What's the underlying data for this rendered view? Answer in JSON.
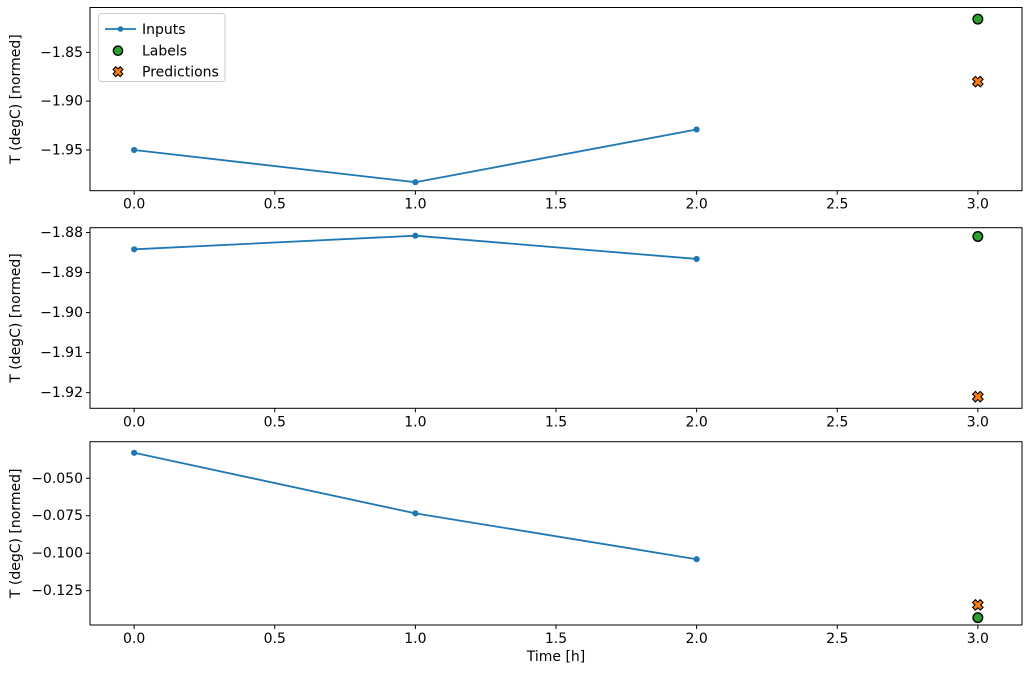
{
  "figure": {
    "background": "#ffffff",
    "xlabel": "Time [h]",
    "legend": {
      "position": "upper-left",
      "border_color": "#cccccc",
      "background": "#ffffff",
      "items": [
        {
          "label": "Inputs",
          "marker": "line-dot",
          "color": "#1f77b4",
          "edge": "#1f77b4"
        },
        {
          "label": "Labels",
          "marker": "circle",
          "color": "#2ca02c",
          "edge": "#000000"
        },
        {
          "label": "Predictions",
          "marker": "x",
          "color": "#ff7f0e",
          "edge": "#000000"
        }
      ]
    }
  },
  "chart_data": [
    {
      "type": "line",
      "title": "",
      "xlabel": "",
      "ylabel": "T (degC) [normed]",
      "grid": false,
      "xlim": [
        -0.157,
        3.157
      ],
      "ylim": [
        -1.9917,
        -1.8041
      ],
      "xticks": [
        0.0,
        0.5,
        1.0,
        1.5,
        2.0,
        2.5,
        3.0
      ],
      "xtick_labels": [
        "0.0",
        "0.5",
        "1.0",
        "1.5",
        "2.0",
        "2.5",
        "3.0"
      ],
      "yticks": [
        -1.85,
        -1.9,
        -1.95
      ],
      "ytick_labels": [
        "−1.85",
        "−1.90",
        "−1.95"
      ],
      "series": [
        {
          "name": "Inputs",
          "type": "line",
          "color": "#1f77b4",
          "x": [
            0,
            1,
            2
          ],
          "y": [
            -1.95,
            -1.983,
            -1.929
          ]
        },
        {
          "name": "Labels",
          "type": "scatter-circle",
          "color": "#2ca02c",
          "edge": "#000000",
          "x": [
            3
          ],
          "y": [
            -1.816
          ]
        },
        {
          "name": "Predictions",
          "type": "scatter-x",
          "color": "#ff7f0e",
          "edge": "#000000",
          "x": [
            3
          ],
          "y": [
            -1.88
          ]
        }
      ]
    },
    {
      "type": "line",
      "title": "",
      "xlabel": "",
      "ylabel": "T (degC) [normed]",
      "grid": false,
      "xlim": [
        -0.157,
        3.157
      ],
      "ylim": [
        -1.9239,
        -1.8788
      ],
      "xticks": [
        0.0,
        0.5,
        1.0,
        1.5,
        2.0,
        2.5,
        3.0
      ],
      "xtick_labels": [
        "0.0",
        "0.5",
        "1.0",
        "1.5",
        "2.0",
        "2.5",
        "3.0"
      ],
      "yticks": [
        -1.88,
        -1.89,
        -1.9,
        -1.91,
        -1.92
      ],
      "ytick_labels": [
        "−1.88",
        "−1.89",
        "−1.90",
        "−1.91",
        "−1.92"
      ],
      "series": [
        {
          "name": "Inputs",
          "type": "line",
          "color": "#1f77b4",
          "x": [
            0,
            1,
            2
          ],
          "y": [
            -1.8842,
            -1.8808,
            -1.8866
          ]
        },
        {
          "name": "Labels",
          "type": "scatter-circle",
          "color": "#2ca02c",
          "edge": "#000000",
          "x": [
            3
          ],
          "y": [
            -1.881
          ]
        },
        {
          "name": "Predictions",
          "type": "scatter-x",
          "color": "#ff7f0e",
          "edge": "#000000",
          "x": [
            3
          ],
          "y": [
            -1.921
          ]
        }
      ]
    },
    {
      "type": "line",
      "title": "",
      "xlabel": "Time [h]",
      "ylabel": "T (degC) [normed]",
      "grid": false,
      "xlim": [
        -0.157,
        3.157
      ],
      "ylim": [
        -0.1479,
        -0.0256
      ],
      "xticks": [
        0.0,
        0.5,
        1.0,
        1.5,
        2.0,
        2.5,
        3.0
      ],
      "xtick_labels": [
        "0.0",
        "0.5",
        "1.0",
        "1.5",
        "2.0",
        "2.5",
        "3.0"
      ],
      "yticks": [
        -0.05,
        -0.075,
        -0.1,
        -0.125
      ],
      "ytick_labels": [
        "−0.050",
        "−0.075",
        "−0.100",
        "−0.125"
      ],
      "series": [
        {
          "name": "Inputs",
          "type": "line",
          "color": "#1f77b4",
          "x": [
            0,
            1,
            2
          ],
          "y": [
            -0.033,
            -0.0734,
            -0.104
          ]
        },
        {
          "name": "Labels",
          "type": "scatter-circle",
          "color": "#2ca02c",
          "edge": "#000000",
          "x": [
            3
          ],
          "y": [
            -0.143
          ]
        },
        {
          "name": "Predictions",
          "type": "scatter-x",
          "color": "#ff7f0e",
          "edge": "#000000",
          "x": [
            3
          ],
          "y": [
            -0.1345
          ]
        }
      ]
    }
  ]
}
